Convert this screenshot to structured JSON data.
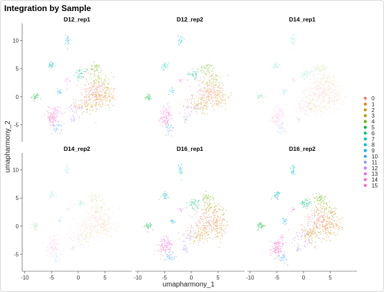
{
  "chart_data": {
    "type": "scatter",
    "title": "Integration by Sample",
    "xlabel": "umapharmony_1",
    "ylabel": "umapharmony_2",
    "xlim": [
      -10.5,
      10
    ],
    "ylim": [
      -8,
      13
    ],
    "x_ticks": [
      -10,
      -5,
      0,
      5
    ],
    "y_ticks": [
      -5,
      0,
      5,
      10
    ],
    "grid": false,
    "legend_position": "right",
    "facets": [
      "D12_rep1",
      "D12_rep2",
      "D14_rep1",
      "D14_rep2",
      "D16_rep1",
      "D16_rep2"
    ],
    "facet_opacity": [
      0.55,
      0.5,
      0.22,
      0.18,
      0.55,
      0.6
    ],
    "clusters": [
      {
        "name": "0",
        "color": "#F8766D",
        "cx": 3.0,
        "cy": 0.8,
        "sx": 2.3,
        "sy": 2.0,
        "n": 120
      },
      {
        "name": "1",
        "color": "#E58700",
        "cx": 5.0,
        "cy": 0.0,
        "sx": 2.0,
        "sy": 2.0,
        "n": 100
      },
      {
        "name": "2",
        "color": "#C99800",
        "cx": 1.5,
        "cy": -1.5,
        "sx": 2.0,
        "sy": 1.5,
        "n": 80
      },
      {
        "name": "3",
        "color": "#A3A500",
        "cx": 4.0,
        "cy": 3.0,
        "sx": 2.0,
        "sy": 1.2,
        "n": 60
      },
      {
        "name": "4",
        "color": "#6BB100",
        "cx": 3.0,
        "cy": 5.0,
        "sx": 1.3,
        "sy": 0.8,
        "n": 40
      },
      {
        "name": "5",
        "color": "#00BA38",
        "cx": -8.0,
        "cy": 0.0,
        "sx": 0.6,
        "sy": 0.6,
        "n": 30
      },
      {
        "name": "6",
        "color": "#00BF7D",
        "cx": 0.5,
        "cy": 4.0,
        "sx": 1.0,
        "sy": 0.8,
        "n": 40
      },
      {
        "name": "7",
        "color": "#00C0AF",
        "cx": -5.0,
        "cy": 5.5,
        "sx": 0.7,
        "sy": 0.6,
        "n": 30
      },
      {
        "name": "8",
        "color": "#00BCD8",
        "cx": -2.0,
        "cy": 10.0,
        "sx": 0.4,
        "sy": 1.0,
        "n": 25
      },
      {
        "name": "9",
        "color": "#00B0F6",
        "cx": -3.5,
        "cy": 1.0,
        "sx": 0.4,
        "sy": 0.5,
        "n": 15
      },
      {
        "name": "10",
        "color": "#35A2FF",
        "cx": -4.0,
        "cy": -5.5,
        "sx": 0.8,
        "sy": 1.0,
        "n": 30
      },
      {
        "name": "11",
        "color": "#9590FF",
        "cx": -1.0,
        "cy": -4.0,
        "sx": 0.5,
        "sy": 0.5,
        "n": 15
      },
      {
        "name": "12",
        "color": "#C77CFF",
        "cx": 0.0,
        "cy": -2.0,
        "sx": 2.0,
        "sy": 1.5,
        "n": 40
      },
      {
        "name": "13",
        "color": "#E76BF3",
        "cx": -2.0,
        "cy": 3.0,
        "sx": 0.4,
        "sy": 0.4,
        "n": 10
      },
      {
        "name": "14",
        "color": "#FA62DB",
        "cx": -4.5,
        "cy": -3.0,
        "sx": 1.0,
        "sy": 1.3,
        "n": 45
      },
      {
        "name": "15",
        "color": "#FF62BC",
        "cx": -5.0,
        "cy": -4.0,
        "sx": 1.0,
        "sy": 1.2,
        "n": 55
      }
    ]
  }
}
